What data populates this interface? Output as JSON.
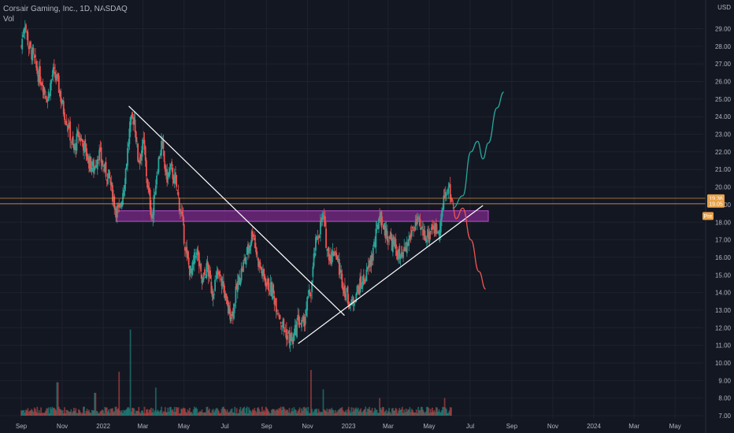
{
  "header": {
    "symbol_line": "Corsair Gaming, Inc., 1D, NASDAQ",
    "volume_label": "Vol"
  },
  "currency": "USD",
  "price_badges": [
    "19.36",
    "19.05"
  ],
  "price_marker_label": "Pre",
  "colors": {
    "background": "#131722",
    "grid": "#1e222d",
    "up": "#26a69a",
    "down": "#ef5350",
    "zone_fill": "#7b2a8a",
    "zone_border": "#c04ad0",
    "trendline": "#ffffff",
    "bull_path": "#26a69a",
    "bear_path": "#ef5350",
    "hline": "#f0a040",
    "badge": "#e8a24a"
  },
  "chart_data": {
    "type": "candlestick",
    "title": "Corsair Gaming, Inc., 1D, NASDAQ",
    "y_axis": {
      "unit": "USD",
      "range": [
        7.0,
        30.0
      ],
      "ticks": [
        "7.00",
        "8.00",
        "9.00",
        "10.00",
        "11.00",
        "12.00",
        "13.00",
        "14.00",
        "15.00",
        "16.00",
        "17.00",
        "18.00",
        "19.00",
        "20.00",
        "21.00",
        "22.00",
        "23.00",
        "24.00",
        "25.00",
        "26.00",
        "27.00",
        "28.00",
        "29.00"
      ]
    },
    "x_axis": {
      "ticks": [
        "Sep",
        "Nov",
        "2022",
        "Mar",
        "May",
        "Jul",
        "Sep",
        "Nov",
        "2023",
        "Mar",
        "May",
        "Jul",
        "Sep",
        "Nov",
        "2024",
        "Mar",
        "May"
      ]
    },
    "price_path": [
      [
        "2021-09-01",
        28.0
      ],
      [
        "2021-09-06",
        29.5
      ],
      [
        "2021-09-12",
        28.0
      ],
      [
        "2021-09-18",
        27.5
      ],
      [
        "2021-09-25",
        26.5
      ],
      [
        "2021-10-02",
        26.0
      ],
      [
        "2021-10-10",
        25.0
      ],
      [
        "2021-10-18",
        26.5
      ],
      [
        "2021-10-25",
        26.0
      ],
      [
        "2021-11-02",
        24.5
      ],
      [
        "2021-11-10",
        23.5
      ],
      [
        "2021-11-18",
        22.0
      ],
      [
        "2021-11-25",
        23.0
      ],
      [
        "2021-12-02",
        22.5
      ],
      [
        "2021-12-10",
        21.5
      ],
      [
        "2021-12-18",
        21.0
      ],
      [
        "2021-12-25",
        22.0
      ],
      [
        "2022-01-02",
        21.0
      ],
      [
        "2022-01-10",
        20.5
      ],
      [
        "2022-01-18",
        19.0
      ],
      [
        "2022-01-25",
        18.5
      ],
      [
        "2022-02-02",
        20.5
      ],
      [
        "2022-02-10",
        23.5
      ],
      [
        "2022-02-16",
        24.0
      ],
      [
        "2022-02-22",
        21.5
      ],
      [
        "2022-03-02",
        22.5
      ],
      [
        "2022-03-08",
        20.0
      ],
      [
        "2022-03-15",
        18.2
      ],
      [
        "2022-03-22",
        21.0
      ],
      [
        "2022-03-29",
        22.5
      ],
      [
        "2022-04-05",
        20.5
      ],
      [
        "2022-04-12",
        21.0
      ],
      [
        "2022-04-20",
        20.0
      ],
      [
        "2022-04-28",
        18.2
      ],
      [
        "2022-05-05",
        16.0
      ],
      [
        "2022-05-12",
        15.0
      ],
      [
        "2022-05-20",
        16.5
      ],
      [
        "2022-05-28",
        14.5
      ],
      [
        "2022-06-05",
        15.5
      ],
      [
        "2022-06-12",
        14.0
      ],
      [
        "2022-06-20",
        15.0
      ],
      [
        "2022-06-28",
        14.5
      ],
      [
        "2022-07-05",
        13.0
      ],
      [
        "2022-07-12",
        12.8
      ],
      [
        "2022-07-20",
        14.5
      ],
      [
        "2022-07-28",
        15.5
      ],
      [
        "2022-08-05",
        16.5
      ],
      [
        "2022-08-12",
        17.6
      ],
      [
        "2022-08-18",
        16.0
      ],
      [
        "2022-08-26",
        15.0
      ],
      [
        "2022-09-02",
        14.5
      ],
      [
        "2022-09-10",
        14.0
      ],
      [
        "2022-09-18",
        13.0
      ],
      [
        "2022-09-26",
        12.0
      ],
      [
        "2022-10-03",
        11.5
      ],
      [
        "2022-10-10",
        11.2
      ],
      [
        "2022-10-18",
        12.5
      ],
      [
        "2022-10-25",
        12.0
      ],
      [
        "2022-11-01",
        13.5
      ],
      [
        "2022-11-06",
        14.0
      ],
      [
        "2022-11-12",
        16.5
      ],
      [
        "2022-11-18",
        17.5
      ],
      [
        "2022-11-24",
        18.4
      ],
      [
        "2022-11-30",
        16.5
      ],
      [
        "2022-12-06",
        16.0
      ],
      [
        "2022-12-12",
        16.5
      ],
      [
        "2022-12-20",
        15.0
      ],
      [
        "2022-12-28",
        14.0
      ],
      [
        "2023-01-05",
        13.2
      ],
      [
        "2023-01-12",
        14.0
      ],
      [
        "2023-01-20",
        14.5
      ],
      [
        "2023-01-28",
        15.0
      ],
      [
        "2023-02-04",
        16.0
      ],
      [
        "2023-02-10",
        17.0
      ],
      [
        "2023-02-16",
        18.5
      ],
      [
        "2023-02-24",
        17.5
      ],
      [
        "2023-03-04",
        17.0
      ],
      [
        "2023-03-12",
        16.5
      ],
      [
        "2023-03-20",
        15.8
      ],
      [
        "2023-03-28",
        16.5
      ],
      [
        "2023-04-05",
        17.5
      ],
      [
        "2023-04-12",
        18.0
      ],
      [
        "2023-04-20",
        17.5
      ],
      [
        "2023-04-28",
        17.2
      ],
      [
        "2023-05-05",
        17.8
      ],
      [
        "2023-05-12",
        17.5
      ],
      [
        "2023-05-18",
        18.0
      ],
      [
        "2023-05-24",
        19.5
      ],
      [
        "2023-05-30",
        20.0
      ],
      [
        "2023-06-04",
        19.1
      ]
    ],
    "volume": {
      "baseline_price": 7.0,
      "typical_height_price": 0.4,
      "spikes": [
        [
          "2021-10-25",
          1.9
        ],
        [
          "2021-12-20",
          1.3
        ],
        [
          "2022-01-25",
          2.5
        ],
        [
          "2022-02-10",
          4.9
        ],
        [
          "2022-03-20",
          1.6
        ],
        [
          "2022-11-06",
          2.6
        ],
        [
          "2022-11-24",
          1.5
        ],
        [
          "2023-02-16",
          1.0
        ],
        [
          "2023-05-24",
          1.0
        ]
      ]
    },
    "resistance_zone": {
      "from_date": "2022-01-20",
      "to_date": "2023-07-28",
      "low": 18.05,
      "high": 18.65
    },
    "horizontal_lines": [
      19.36,
      19.05
    ],
    "trendlines": [
      {
        "name": "descending",
        "from": [
          "2022-02-08",
          24.6
        ],
        "to": [
          "2022-12-26",
          12.7
        ]
      },
      {
        "name": "ascending",
        "from": [
          "2022-10-18",
          11.1
        ],
        "to": [
          "2023-07-20",
          18.95
        ]
      }
    ],
    "projections": [
      {
        "name": "bullish",
        "color": "#26a69a",
        "points": [
          [
            "2023-06-05",
            18.8
          ],
          [
            "2023-06-20",
            19.5
          ],
          [
            "2023-07-02",
            22.0
          ],
          [
            "2023-07-12",
            22.6
          ],
          [
            "2023-07-20",
            21.6
          ],
          [
            "2023-07-28",
            22.5
          ],
          [
            "2023-08-10",
            24.5
          ],
          [
            "2023-08-20",
            25.4
          ]
        ]
      },
      {
        "name": "bearish",
        "color": "#ef5350",
        "points": [
          [
            "2023-06-03",
            19.4
          ],
          [
            "2023-06-10",
            18.2
          ],
          [
            "2023-06-20",
            18.8
          ],
          [
            "2023-07-02",
            17.0
          ],
          [
            "2023-07-14",
            15.2
          ],
          [
            "2023-07-24",
            14.2
          ]
        ]
      }
    ]
  }
}
